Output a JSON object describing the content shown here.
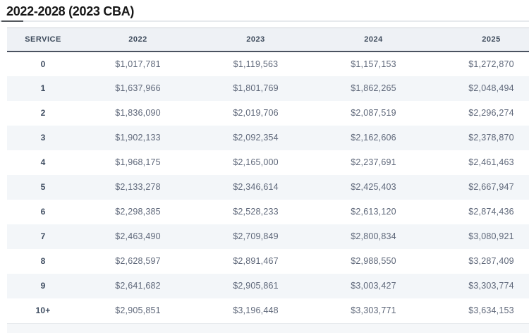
{
  "chart_data": {
    "type": "table",
    "title": "2022-2028 (2023 CBA)",
    "columns": [
      "SERVICE",
      "2022",
      "2023",
      "2024",
      "2025"
    ],
    "rows": [
      {
        "service": "0",
        "values": [
          "$1,017,781",
          "$1,119,563",
          "$1,157,153",
          "$1,272,870"
        ]
      },
      {
        "service": "1",
        "values": [
          "$1,637,966",
          "$1,801,769",
          "$1,862,265",
          "$2,048,494"
        ]
      },
      {
        "service": "2",
        "values": [
          "$1,836,090",
          "$2,019,706",
          "$2,087,519",
          "$2,296,274"
        ]
      },
      {
        "service": "3",
        "values": [
          "$1,902,133",
          "$2,092,354",
          "$2,162,606",
          "$2,378,870"
        ]
      },
      {
        "service": "4",
        "values": [
          "$1,968,175",
          "$2,165,000",
          "$2,237,691",
          "$2,461,463"
        ]
      },
      {
        "service": "5",
        "values": [
          "$2,133,278",
          "$2,346,614",
          "$2,425,403",
          "$2,667,947"
        ]
      },
      {
        "service": "6",
        "values": [
          "$2,298,385",
          "$2,528,233",
          "$2,613,120",
          "$2,874,436"
        ]
      },
      {
        "service": "7",
        "values": [
          "$2,463,490",
          "$2,709,849",
          "$2,800,834",
          "$3,080,921"
        ]
      },
      {
        "service": "8",
        "values": [
          "$2,628,597",
          "$2,891,467",
          "$2,988,550",
          "$3,287,409"
        ]
      },
      {
        "service": "9",
        "values": [
          "$2,641,682",
          "$2,905,861",
          "$3,003,427",
          "$3,303,774"
        ]
      },
      {
        "service": "10+",
        "values": [
          "$2,905,851",
          "$3,196,448",
          "$3,303,771",
          "$3,634,153"
        ]
      }
    ],
    "layout_hints": {
      "striped": true,
      "stripe_rows": "odd service years (1,3,5,7,9)",
      "alignment": "center"
    }
  },
  "colors": {
    "header_bg": "#eef1f5",
    "stripe_bg": "#f3f6f9",
    "header_border_bottom": "#4a5260",
    "title_accent": "#54585d",
    "title_text": "#171717",
    "header_text": "#3e4b5c",
    "service_text": "#3f4d61",
    "value_text": "#5f687a"
  }
}
